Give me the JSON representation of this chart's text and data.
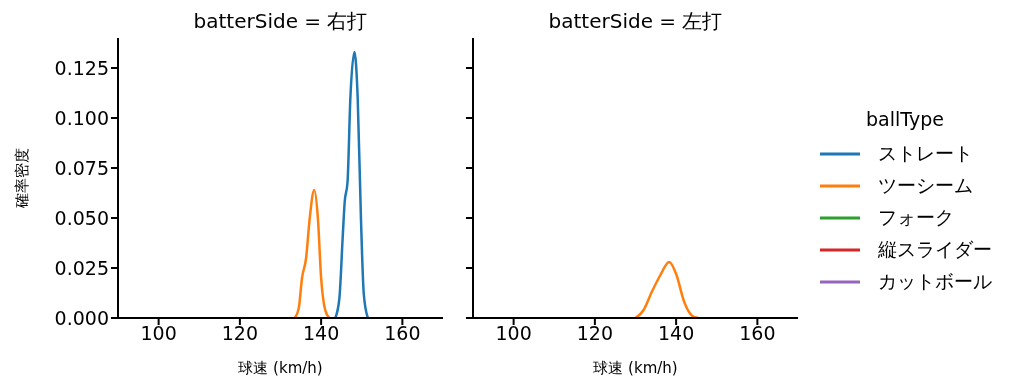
{
  "chart_data": [
    {
      "type": "line",
      "title": "batterSide = 右打",
      "xlabel": "球速 (km/h)",
      "ylabel": "確率密度",
      "xlim": [
        90,
        170
      ],
      "ylim": [
        0,
        0.14
      ],
      "xticks": [
        100,
        120,
        140,
        160
      ],
      "yticks": [
        {
          "value": 0,
          "label": "0.000"
        },
        {
          "value": 0.025,
          "label": "0.025"
        },
        {
          "value": 0.05,
          "label": "0.050"
        },
        {
          "value": 0.075,
          "label": "0.075"
        },
        {
          "value": 0.1,
          "label": "0.100"
        },
        {
          "value": 0.125,
          "label": "0.125"
        }
      ],
      "marker": "none",
      "line_style": "solid",
      "series": [
        {
          "color": "#1f77b4",
          "x": [
            143.5,
            144.5,
            145.3,
            145.8,
            146.5,
            147.2,
            148.2,
            149,
            149.8,
            150.5,
            151.5
          ],
          "values": [
            0,
            0.01,
            0.04,
            0.058,
            0.068,
            0.11,
            0.133,
            0.11,
            0.05,
            0.012,
            0
          ]
        },
        {
          "color": "#ff7f0e",
          "x": [
            133.5,
            134.5,
            135.3,
            136.3,
            137.2,
            138.3,
            139.2,
            140,
            141,
            142
          ],
          "values": [
            0,
            0.005,
            0.02,
            0.03,
            0.05,
            0.064,
            0.05,
            0.02,
            0.004,
            0
          ]
        }
      ]
    },
    {
      "type": "line",
      "title": "batterSide = 左打",
      "xlabel": "球速 (km/h)",
      "legend_title": "ballType",
      "xlim": [
        90,
        170
      ],
      "ylim": [
        0,
        0.14
      ],
      "xticks": [
        100,
        120,
        140,
        160
      ],
      "yticks": [
        0,
        0.025,
        0.05,
        0.075,
        0.1,
        0.125
      ],
      "tick_labels": "x",
      "legend": "right",
      "marker": "none",
      "line_style": "solid",
      "series": [
        {
          "name": "ストレート",
          "color": "#1f77b4"
        },
        {
          "name": "ツーシーム",
          "color": "#ff7f0e",
          "x": [
            130,
            132,
            134,
            136,
            138.3,
            140,
            142,
            144,
            145.5
          ],
          "values": [
            0,
            0.004,
            0.013,
            0.021,
            0.028,
            0.022,
            0.008,
            0.001,
            0
          ]
        },
        {
          "name": "フォーク",
          "color": "#2ca02c"
        },
        {
          "name": "縦スライダー",
          "color": "#d62728"
        },
        {
          "name": "カットボール",
          "color": "#9467bd"
        }
      ]
    }
  ]
}
